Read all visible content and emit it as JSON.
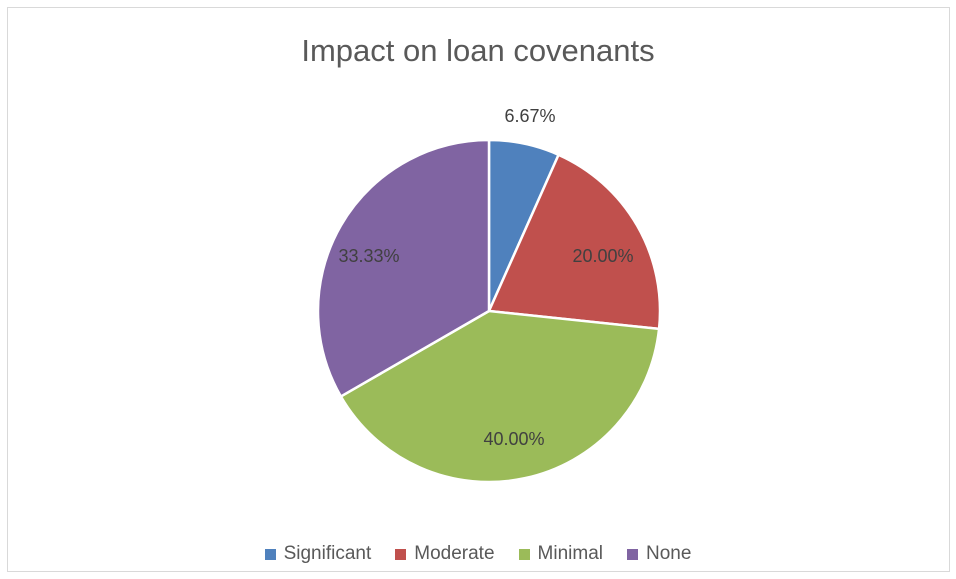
{
  "chart_data": {
    "type": "pie",
    "title": "Impact on loan covenants",
    "categories": [
      "Significant",
      "Moderate",
      "Minimal",
      "None"
    ],
    "values": [
      6.67,
      20.0,
      40.0,
      33.33
    ],
    "data_labels": [
      "6.67%",
      "20.00%",
      "40.00%",
      "33.33%"
    ],
    "colors": [
      "#4F81BD",
      "#C0504D",
      "#9BBB59",
      "#8064A2"
    ],
    "start_angle_deg": 0,
    "direction": "clockwise",
    "legend_position": "bottom"
  }
}
